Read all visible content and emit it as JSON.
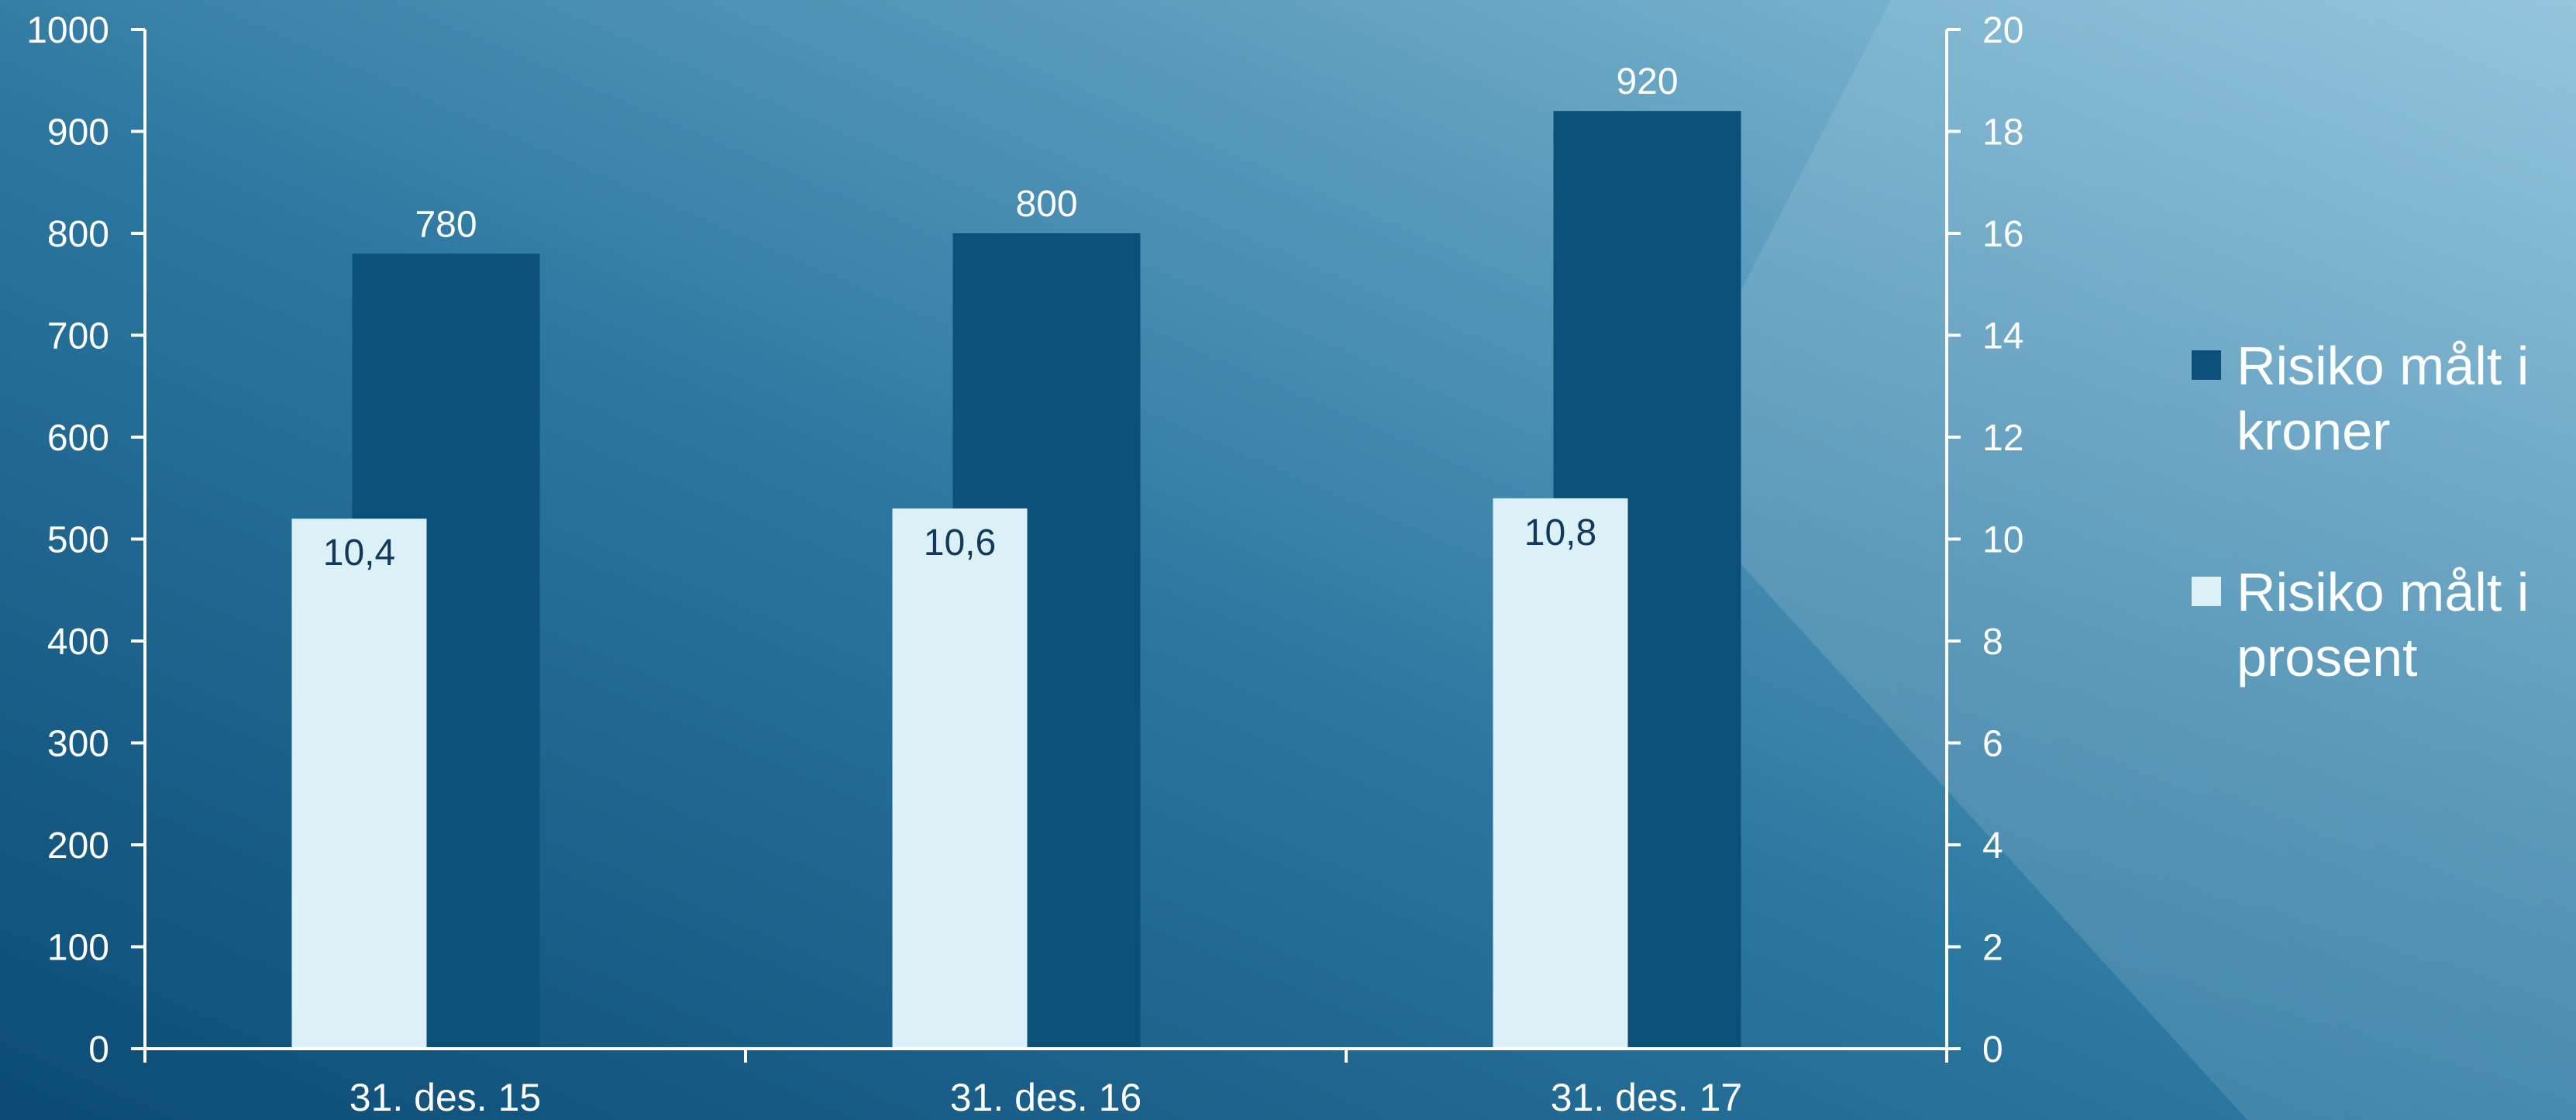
{
  "chart_data": {
    "type": "bar",
    "categories": [
      "31. des. 15",
      "31. des. 16",
      "31. des. 17"
    ],
    "series": [
      {
        "name": "Risiko målt i kroner",
        "axis": "left",
        "values": [
          780,
          800,
          920
        ],
        "labels": [
          "780",
          "800",
          "920"
        ],
        "color": "#0a5079"
      },
      {
        "name": "Risiko målt i prosent",
        "axis": "right",
        "values": [
          10.4,
          10.6,
          10.8
        ],
        "labels": [
          "10,4",
          "10,6",
          "10,8"
        ],
        "color": "#dcf0f8"
      }
    ],
    "y_left": {
      "ylim": [
        0,
        1000
      ],
      "ticks": [
        "0",
        "100",
        "200",
        "300",
        "400",
        "500",
        "600",
        "700",
        "800",
        "900",
        "1000"
      ]
    },
    "y_right": {
      "ylim": [
        0,
        20
      ],
      "ticks": [
        "0",
        "2",
        "4",
        "6",
        "8",
        "10",
        "12",
        "14",
        "16",
        "18",
        "20"
      ]
    },
    "grid": false,
    "legend_position": "right",
    "title": "",
    "xlabel": "",
    "ylabel": ""
  },
  "style": {
    "background_start": "#0b4b75",
    "background_mid": "#2b77a0",
    "background_end": "#8fc3dc",
    "axis_color": "#ffffff",
    "text_color": "#ffffff",
    "bar_label_dark": "#12395a"
  }
}
